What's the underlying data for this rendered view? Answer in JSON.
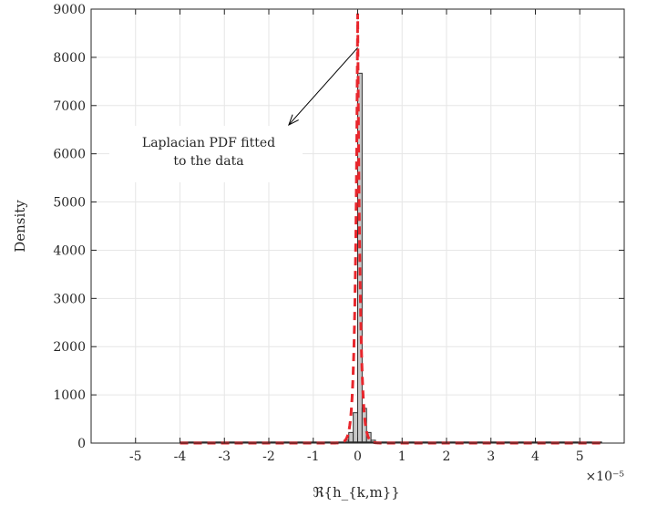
{
  "chart_data": {
    "type": "bar",
    "xlabel": "ℜ{h_{k,m}}",
    "ylabel": "Density",
    "x_exponent": "×10⁻⁵",
    "xlim": [
      -6,
      6
    ],
    "ylim": [
      0,
      9000
    ],
    "xticks": [
      -5,
      -4,
      -3,
      -2,
      -1,
      0,
      1,
      2,
      3,
      4,
      5
    ],
    "xtick_labels": [
      "-5",
      "-4",
      "-3",
      "-2",
      "-1",
      "0",
      "1",
      "2",
      "3",
      "4",
      "5"
    ],
    "yticks": [
      0,
      1000,
      2000,
      3000,
      4000,
      5000,
      6000,
      7000,
      8000,
      9000
    ],
    "ytick_labels": [
      "0",
      "1000",
      "2000",
      "3000",
      "4000",
      "5000",
      "6000",
      "7000",
      "8000",
      "9000"
    ],
    "grid": true,
    "histogram": {
      "bin_width": 0.1,
      "bin_starts": [
        -0.5,
        -0.4,
        -0.3,
        -0.2,
        -0.1,
        0.0,
        0.1,
        0.2,
        0.3,
        0.4
      ],
      "values": [
        5,
        15,
        60,
        220,
        630,
        7670,
        720,
        220,
        60,
        15
      ]
    },
    "baseline_range": [
      -4,
      5.5
    ],
    "fit": {
      "name": "Laplacian PDF fitted to the data",
      "location": 0,
      "peak": 9000,
      "scale": 0.0556,
      "x_range": [
        -4,
        5.5
      ]
    },
    "annotation": {
      "line1": "Laplacian PDF fitted",
      "line2": "to the data",
      "arrow_from": [
        0,
        8200
      ],
      "arrow_to": [
        -1.55,
        6600
      ]
    },
    "colors": {
      "bar_fill": "#c8c8c8",
      "bar_edge": "#303030",
      "fit_line": "#e8262c",
      "grid": "#e6e6e6",
      "axes": "#262626"
    }
  }
}
